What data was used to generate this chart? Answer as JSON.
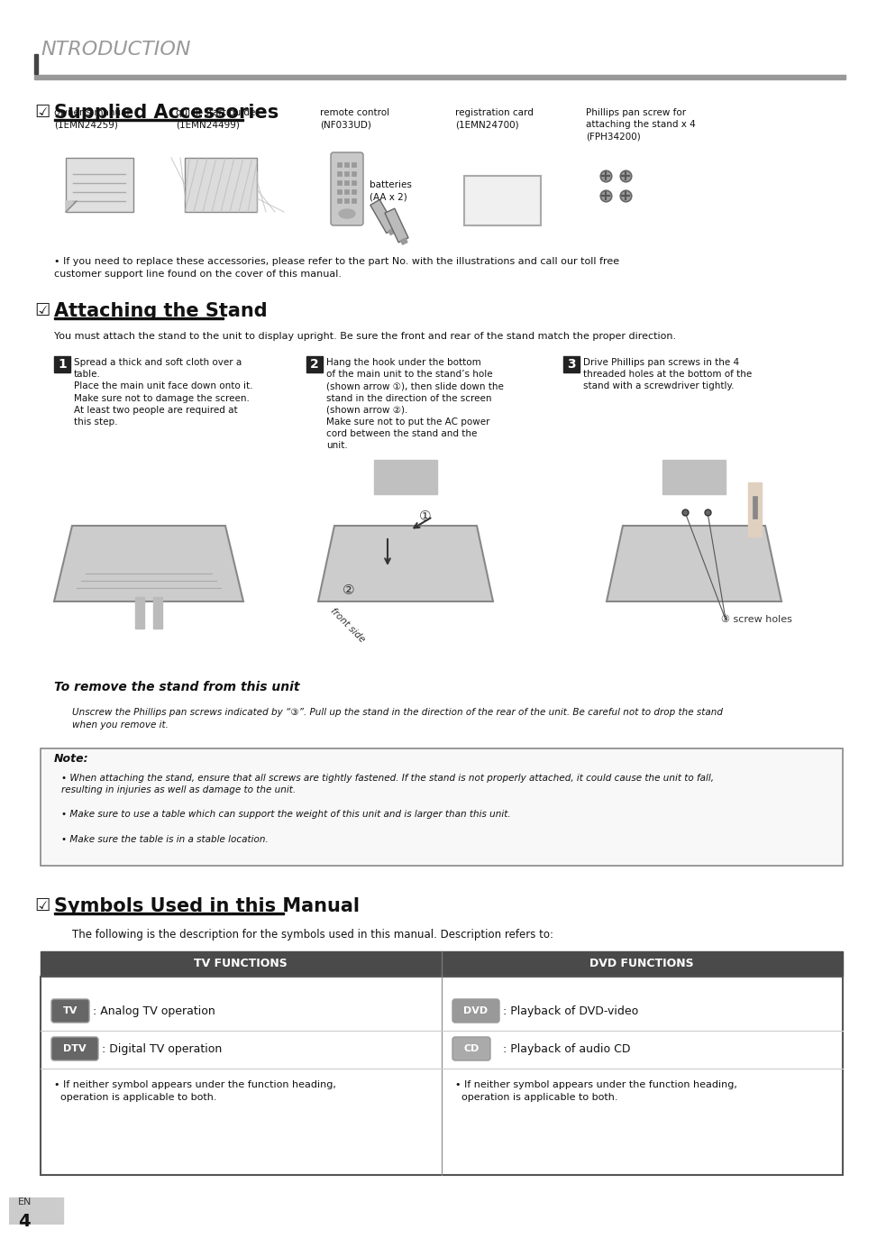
{
  "bg_color": "#ffffff",
  "header_text": "NTRODUCTION",
  "header_bar_color": "#999999",
  "header_left_bar_color": "#444444",
  "section1_title": "Supplied Accessories",
  "section2_title": "Attaching the Stand",
  "section3_title": "Symbols Used in this Manual",
  "checkbox_color": "#333333",
  "title_underline_color": "#000000",
  "accessories_note": "If you need to replace these accessories, please refer to the part No. with the illustrations and call our toll free\ncustomer support line found on the cover of this manual.",
  "stand_intro": "You must attach the stand to the unit to display upright. Be sure the front and rear of the stand match the proper direction.",
  "step1_num": "1",
  "step1_text": "Spread a thick and soft cloth over a\ntable.\nPlace the main unit face down onto it.\nMake sure not to damage the screen.\nAt least two people are required at\nthis step.",
  "step2_num": "2",
  "step2_text": "Hang the hook under the bottom\nof the main unit to the stand’s hole\n(shown arrow ①), then slide down the\nstand in the direction of the screen\n(shown arrow ②).\nMake sure not to put the AC power\ncord between the stand and the\nunit.",
  "step3_num": "3",
  "step3_text": "Drive Phillips pan screws in the 4\nthreaded holes at the bottom of the\nstand with a screwdriver tightly.",
  "screw_holes_label": "③ screw holes",
  "remove_stand_title": "To remove the stand from this unit",
  "remove_stand_text": "Unscrew the Phillips pan screws indicated by “③”. Pull up the stand in the direction of the rear of the unit. Be careful not to drop the stand\nwhen you remove it.",
  "note_title": "Note:",
  "note_bullets": [
    "When attaching the stand, ensure that all screws are tightly fastened. If the stand is not properly attached, it could cause the unit to fall,\nresulting in injuries as well as damage to the unit.",
    "Make sure to use a table which can support the weight of this unit and is larger than this unit.",
    "Make sure the table is in a stable location."
  ],
  "symbols_intro": "The following is the description for the symbols used in this manual. Description refers to:",
  "table_header_color": "#4a4a4a",
  "table_header_text_color": "#ffffff",
  "table_border_color": "#555555",
  "table_col1_header": "TV FUNCTIONS",
  "table_col2_header": "DVD FUNCTIONS",
  "page_num": "4",
  "page_lang": "EN",
  "page_num_bg": "#cccccc"
}
